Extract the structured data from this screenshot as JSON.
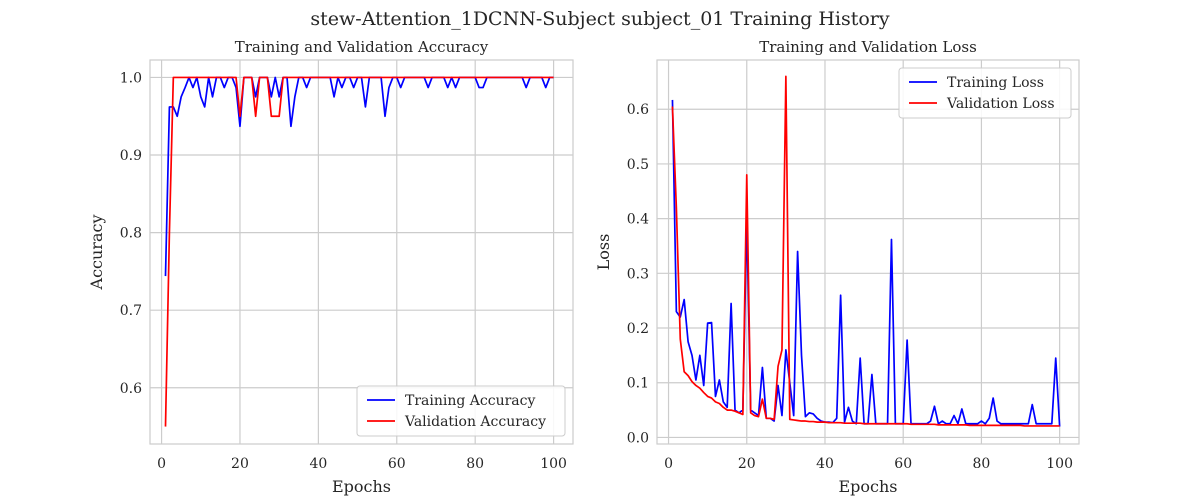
{
  "figure": {
    "suptitle": "stew-Attention_1DCNN-Subject subject_01 Training History"
  },
  "chart_data": [
    {
      "type": "line",
      "title": "Training and Validation Accuracy",
      "xlabel": "Epochs",
      "ylabel": "Accuracy",
      "xlim": [
        -2.95,
        104.95
      ],
      "ylim": [
        0.5275,
        1.0225
      ],
      "xticks": [
        0,
        20,
        40,
        60,
        80,
        100
      ],
      "yticks": [
        0.6,
        0.7,
        0.8,
        0.9,
        1.0
      ],
      "ytick_labels": [
        "0.6",
        "0.7",
        "0.8",
        "0.9",
        "1.0"
      ],
      "grid": true,
      "legend_position": "lower-right",
      "series": [
        {
          "name": "Training Accuracy",
          "color": "#0000ff",
          "x": [
            1,
            2,
            3,
            4,
            5,
            6,
            7,
            8,
            9,
            10,
            11,
            12,
            13,
            14,
            15,
            16,
            17,
            18,
            19,
            20,
            21,
            22,
            23,
            24,
            25,
            26,
            27,
            28,
            29,
            30,
            31,
            32,
            33,
            34,
            35,
            36,
            37,
            38,
            39,
            40,
            41,
            42,
            43,
            44,
            45,
            46,
            47,
            48,
            49,
            50,
            51,
            52,
            53,
            54,
            55,
            56,
            57,
            58,
            59,
            60,
            61,
            62,
            63,
            64,
            65,
            66,
            67,
            68,
            69,
            70,
            71,
            72,
            73,
            74,
            75,
            76,
            77,
            78,
            79,
            80,
            81,
            82,
            83,
            84,
            85,
            86,
            87,
            88,
            89,
            90,
            91,
            92,
            93,
            94,
            95,
            96,
            97,
            98,
            99,
            100
          ],
          "values": [
            0.744,
            0.962,
            0.962,
            0.95,
            0.975,
            0.987,
            1.0,
            0.987,
            1.0,
            0.975,
            0.962,
            1.0,
            0.975,
            1.0,
            1.0,
            0.987,
            1.0,
            1.0,
            0.987,
            0.937,
            1.0,
            1.0,
            1.0,
            0.975,
            1.0,
            1.0,
            1.0,
            0.975,
            1.0,
            0.975,
            1.0,
            1.0,
            0.937,
            0.975,
            1.0,
            1.0,
            0.987,
            1.0,
            1.0,
            1.0,
            1.0,
            1.0,
            1.0,
            0.975,
            1.0,
            0.987,
            1.0,
            1.0,
            0.987,
            1.0,
            1.0,
            0.962,
            1.0,
            1.0,
            1.0,
            1.0,
            0.95,
            0.987,
            1.0,
            1.0,
            0.987,
            1.0,
            1.0,
            1.0,
            1.0,
            1.0,
            1.0,
            0.987,
            1.0,
            1.0,
            1.0,
            1.0,
            0.987,
            1.0,
            0.987,
            1.0,
            1.0,
            1.0,
            1.0,
            1.0,
            0.987,
            0.987,
            1.0,
            1.0,
            1.0,
            1.0,
            1.0,
            1.0,
            1.0,
            1.0,
            1.0,
            1.0,
            0.987,
            1.0,
            1.0,
            1.0,
            1.0,
            0.987,
            1.0,
            1.0
          ]
        },
        {
          "name": "Validation Accuracy",
          "color": "#ff0000",
          "x": [
            1,
            2,
            3,
            4,
            5,
            6,
            7,
            8,
            9,
            10,
            11,
            12,
            13,
            14,
            15,
            16,
            17,
            18,
            19,
            20,
            21,
            22,
            23,
            24,
            25,
            26,
            27,
            28,
            29,
            30,
            31,
            32,
            33,
            34,
            35,
            36,
            37,
            38,
            39,
            40,
            41,
            42,
            43,
            44,
            45,
            46,
            47,
            48,
            49,
            50,
            51,
            52,
            53,
            54,
            55,
            56,
            57,
            58,
            59,
            60,
            61,
            62,
            63,
            64,
            65,
            66,
            67,
            68,
            69,
            70,
            71,
            72,
            73,
            74,
            75,
            76,
            77,
            78,
            79,
            80,
            81,
            82,
            83,
            84,
            85,
            86,
            87,
            88,
            89,
            90,
            91,
            92,
            93,
            94,
            95,
            96,
            97,
            98,
            99,
            100
          ],
          "values": [
            0.55,
            0.8,
            1.0,
            1.0,
            1.0,
            1.0,
            1.0,
            1.0,
            1.0,
            1.0,
            1.0,
            1.0,
            1.0,
            1.0,
            1.0,
            1.0,
            1.0,
            1.0,
            1.0,
            0.95,
            1.0,
            1.0,
            1.0,
            0.95,
            1.0,
            1.0,
            1.0,
            0.95,
            0.95,
            0.95,
            1.0,
            1.0,
            1.0,
            1.0,
            1.0,
            1.0,
            1.0,
            1.0,
            1.0,
            1.0,
            1.0,
            1.0,
            1.0,
            1.0,
            1.0,
            1.0,
            1.0,
            1.0,
            1.0,
            1.0,
            1.0,
            1.0,
            1.0,
            1.0,
            1.0,
            1.0,
            1.0,
            1.0,
            1.0,
            1.0,
            1.0,
            1.0,
            1.0,
            1.0,
            1.0,
            1.0,
            1.0,
            1.0,
            1.0,
            1.0,
            1.0,
            1.0,
            1.0,
            1.0,
            1.0,
            1.0,
            1.0,
            1.0,
            1.0,
            1.0,
            1.0,
            1.0,
            1.0,
            1.0,
            1.0,
            1.0,
            1.0,
            1.0,
            1.0,
            1.0,
            1.0,
            1.0,
            1.0,
            1.0,
            1.0,
            1.0,
            1.0,
            1.0,
            1.0,
            1.0
          ]
        }
      ]
    },
    {
      "type": "line",
      "title": "Training and Validation Loss",
      "xlabel": "Epochs",
      "ylabel": "Loss",
      "xlim": [
        -2.95,
        104.95
      ],
      "ylim": [
        -0.012,
        0.69
      ],
      "xticks": [
        0,
        20,
        40,
        60,
        80,
        100
      ],
      "yticks": [
        0.0,
        0.1,
        0.2,
        0.3,
        0.4,
        0.5,
        0.6
      ],
      "ytick_labels": [
        "0.0",
        "0.1",
        "0.2",
        "0.3",
        "0.4",
        "0.5",
        "0.6"
      ],
      "grid": true,
      "legend_position": "upper-right",
      "series": [
        {
          "name": "Training Loss",
          "color": "#0000ff",
          "x": [
            1,
            2,
            3,
            4,
            5,
            6,
            7,
            8,
            9,
            10,
            11,
            12,
            13,
            14,
            15,
            16,
            17,
            18,
            19,
            20,
            21,
            22,
            23,
            24,
            25,
            26,
            27,
            28,
            29,
            30,
            31,
            32,
            33,
            34,
            35,
            36,
            37,
            38,
            39,
            40,
            41,
            42,
            43,
            44,
            45,
            46,
            47,
            48,
            49,
            50,
            51,
            52,
            53,
            54,
            55,
            56,
            57,
            58,
            59,
            60,
            61,
            62,
            63,
            64,
            65,
            66,
            67,
            68,
            69,
            70,
            71,
            72,
            73,
            74,
            75,
            76,
            77,
            78,
            79,
            80,
            81,
            82,
            83,
            84,
            85,
            86,
            87,
            88,
            89,
            90,
            91,
            92,
            93,
            94,
            95,
            96,
            97,
            98,
            99,
            100
          ],
          "values": [
            0.617,
            0.23,
            0.22,
            0.252,
            0.175,
            0.15,
            0.105,
            0.15,
            0.095,
            0.209,
            0.21,
            0.075,
            0.105,
            0.065,
            0.055,
            0.245,
            0.05,
            0.045,
            0.05,
            0.4,
            0.05,
            0.045,
            0.04,
            0.128,
            0.035,
            0.035,
            0.03,
            0.095,
            0.04,
            0.16,
            0.1,
            0.04,
            0.34,
            0.15,
            0.038,
            0.045,
            0.043,
            0.035,
            0.03,
            0.028,
            0.028,
            0.027,
            0.035,
            0.26,
            0.028,
            0.055,
            0.03,
            0.025,
            0.145,
            0.025,
            0.025,
            0.115,
            0.025,
            0.025,
            0.025,
            0.025,
            0.362,
            0.025,
            0.025,
            0.025,
            0.178,
            0.025,
            0.025,
            0.025,
            0.025,
            0.025,
            0.03,
            0.057,
            0.025,
            0.03,
            0.025,
            0.025,
            0.04,
            0.025,
            0.052,
            0.025,
            0.025,
            0.025,
            0.025,
            0.03,
            0.025,
            0.035,
            0.072,
            0.03,
            0.025,
            0.025,
            0.025,
            0.025,
            0.025,
            0.025,
            0.025,
            0.025,
            0.06,
            0.025,
            0.025,
            0.025,
            0.025,
            0.025,
            0.145,
            0.02
          ]
        },
        {
          "name": "Validation Loss",
          "color": "#ff0000",
          "x": [
            1,
            2,
            3,
            4,
            5,
            6,
            7,
            8,
            9,
            10,
            11,
            12,
            13,
            14,
            15,
            16,
            17,
            18,
            19,
            20,
            21,
            22,
            23,
            24,
            25,
            26,
            27,
            28,
            29,
            30,
            31,
            32,
            33,
            34,
            35,
            36,
            37,
            38,
            39,
            40,
            41,
            42,
            43,
            44,
            45,
            46,
            47,
            48,
            49,
            50,
            51,
            52,
            53,
            54,
            55,
            56,
            57,
            58,
            59,
            60,
            61,
            62,
            63,
            64,
            65,
            66,
            67,
            68,
            69,
            70,
            71,
            72,
            73,
            74,
            75,
            76,
            77,
            78,
            79,
            80,
            81,
            82,
            83,
            84,
            85,
            86,
            87,
            88,
            89,
            90,
            91,
            92,
            93,
            94,
            95,
            96,
            97,
            98,
            99,
            100
          ],
          "values": [
            0.605,
            0.42,
            0.18,
            0.12,
            0.113,
            0.102,
            0.095,
            0.09,
            0.082,
            0.075,
            0.072,
            0.065,
            0.062,
            0.055,
            0.05,
            0.05,
            0.048,
            0.045,
            0.042,
            0.48,
            0.045,
            0.04,
            0.038,
            0.07,
            0.035,
            0.035,
            0.033,
            0.13,
            0.16,
            0.66,
            0.033,
            0.032,
            0.031,
            0.03,
            0.03,
            0.029,
            0.029,
            0.028,
            0.028,
            0.028,
            0.027,
            0.027,
            0.027,
            0.027,
            0.026,
            0.026,
            0.026,
            0.026,
            0.026,
            0.025,
            0.025,
            0.025,
            0.025,
            0.025,
            0.025,
            0.025,
            0.025,
            0.025,
            0.025,
            0.025,
            0.025,
            0.024,
            0.024,
            0.024,
            0.024,
            0.024,
            0.024,
            0.024,
            0.023,
            0.023,
            0.023,
            0.023,
            0.023,
            0.023,
            0.023,
            0.023,
            0.022,
            0.022,
            0.022,
            0.022,
            0.022,
            0.022,
            0.022,
            0.022,
            0.022,
            0.022,
            0.022,
            0.022,
            0.022,
            0.022,
            0.021,
            0.021,
            0.021,
            0.021,
            0.021,
            0.021,
            0.021,
            0.021,
            0.021,
            0.021
          ]
        }
      ]
    }
  ]
}
